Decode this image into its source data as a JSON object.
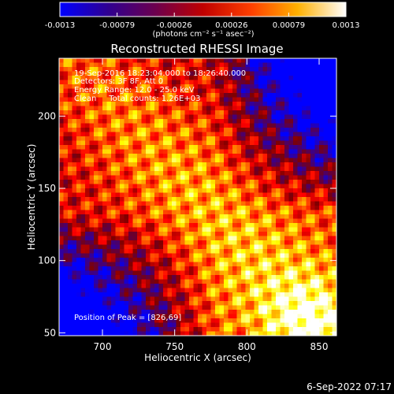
{
  "chart_data": {
    "type": "heatmap",
    "title": "Reconstructed RHESSI Image",
    "xlabel": "Heliocentric X (arcsec)",
    "ylabel": "Heliocentric Y (arcsec)",
    "xlim": [
      670,
      862
    ],
    "ylim": [
      48,
      240
    ],
    "x_ticks": [
      {
        "value": 700,
        "label": "700"
      },
      {
        "value": 750,
        "label": "750"
      },
      {
        "value": 800,
        "label": "800"
      },
      {
        "value": 850,
        "label": "850"
      }
    ],
    "y_ticks": [
      {
        "value": 50,
        "label": "50"
      },
      {
        "value": 100,
        "label": "100"
      },
      {
        "value": 150,
        "label": "150"
      },
      {
        "value": 200,
        "label": "200"
      }
    ],
    "colorbar": {
      "min": -0.0013,
      "max": 0.0013,
      "tick_labels": [
        "-0.0013",
        "-0.00079",
        "-0.00026",
        "0.00026",
        "0.00079",
        "0.0013"
      ],
      "units_label": "(photons cm⁻² s⁻¹ asec⁻²)",
      "colormap": [
        "#0000ff",
        "#400080",
        "#800000",
        "#ff0000",
        "#ff8000",
        "#ffff00",
        "#ffffff"
      ]
    },
    "annotations": {
      "time_range": "19-Sep-2016 18:23:04.000 to 18:26:40.000",
      "detectors": "Detectors: 3F 8F, Att 0",
      "energy_range": "Energy Range: 12.0 - 25.0 keV",
      "clean_counts": "Clean     Total counts: 1.26E+03",
      "peak": "Position of Peak = [826,69]"
    },
    "peak_position": [
      826,
      69
    ]
  },
  "footer": {
    "timestamp": "6-Sep-2022 07:17"
  }
}
